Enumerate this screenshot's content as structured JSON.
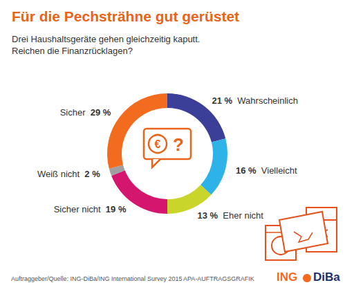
{
  "chart_data": {
    "type": "pie",
    "title": "Für die Pechsträhne gut gerüstet",
    "subtitle": [
      "Drei Haushaltsgeräte gehen gleichzeitig kaputt.",
      "Reichen die Finanzrücklagen?"
    ],
    "categories": [
      "Wahrscheinlich",
      "Vielleicht",
      "Eher nicht",
      "Sicher nicht",
      "Weiß nicht",
      "Sicher"
    ],
    "values": [
      21,
      16,
      13,
      19,
      2,
      29
    ],
    "value_labels": [
      "21 %",
      "16 %",
      "13 %",
      "19 %",
      "2 %",
      "29 %"
    ],
    "colors": [
      "#3b3f98",
      "#2db3e8",
      "#c9d52b",
      "#d5166f",
      "#a0a0a0",
      "#f26b1f"
    ],
    "data_labels": true,
    "center_icon_texts": [
      "€",
      "?"
    ],
    "source": "Auftraggeber/Quelle: ING-DiBa/ING International Survey 2015",
    "credit": "APA-AUFTRAGSGRAFIK",
    "logo": [
      "ING",
      "DiBa"
    ]
  }
}
